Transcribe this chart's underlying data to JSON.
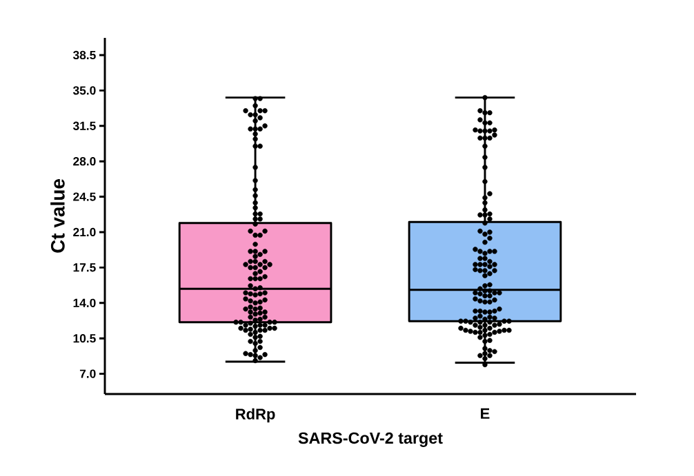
{
  "chart_data": {
    "type": "box",
    "xlabel": "SARS-CoV-2 target",
    "ylabel": "Ct value",
    "categories": [
      "RdRp",
      "E"
    ],
    "ylim": [
      5,
      40.2
    ],
    "yticks": [
      {
        "value": 7,
        "label": "7.0"
      },
      10.5,
      {
        "value": 14,
        "label": "14.0"
      },
      17.5,
      {
        "value": 21,
        "label": "21.0"
      },
      24.5,
      {
        "value": 28,
        "label": "28.0"
      },
      31.5,
      {
        "value": 35,
        "label": "35.0"
      },
      38.5
    ],
    "series": [
      {
        "colors": [
          "#f89ac8",
          "#92c0f5"
        ],
        "boxes": [
          {
            "low": 8.2,
            "q1": 12.1,
            "median": 15.4,
            "q3": 21.9,
            "high": 34.3
          },
          {
            "low": 8.1,
            "q1": 12.2,
            "median": 15.3,
            "q3": 22.0,
            "high": 34.3
          }
        ]
      },
      {
        "type": "scatter",
        "color": "#000000",
        "marker": "circle",
        "x": [
          "RdRp",
          "RdRp",
          "RdRp",
          "RdRp",
          "RdRp",
          "RdRp",
          "RdRp",
          "RdRp",
          "RdRp",
          "RdRp",
          "RdRp",
          "RdRp",
          "RdRp",
          "RdRp",
          "RdRp",
          "RdRp",
          "RdRp",
          "RdRp",
          "RdRp",
          "RdRp",
          "RdRp",
          "RdRp",
          "RdRp",
          "RdRp",
          "RdRp",
          "RdRp",
          "RdRp",
          "RdRp",
          "RdRp",
          "RdRp",
          "RdRp",
          "RdRp",
          "RdRp",
          "RdRp",
          "RdRp",
          "RdRp",
          "RdRp",
          "RdRp",
          "RdRp",
          "RdRp",
          "RdRp",
          "RdRp",
          "RdRp",
          "RdRp",
          "RdRp",
          "RdRp",
          "RdRp",
          "RdRp",
          "RdRp",
          "RdRp",
          "RdRp",
          "RdRp",
          "RdRp",
          "RdRp",
          "RdRp",
          "RdRp",
          "RdRp",
          "RdRp",
          "RdRp",
          "RdRp",
          "RdRp",
          "RdRp",
          "RdRp",
          "RdRp",
          "RdRp",
          "RdRp",
          "RdRp",
          "RdRp",
          "RdRp",
          "RdRp",
          "RdRp",
          "RdRp",
          "RdRp",
          "RdRp",
          "RdRp",
          "RdRp",
          "RdRp",
          "RdRp",
          "RdRp",
          "RdRp",
          "RdRp",
          "RdRp",
          "RdRp",
          "RdRp",
          "RdRp",
          "RdRp",
          "RdRp",
          "RdRp",
          "RdRp",
          "RdRp",
          "RdRp",
          "RdRp",
          "RdRp",
          "RdRp",
          "RdRp",
          "RdRp",
          "RdRp",
          "RdRp",
          "RdRp",
          "RdRp",
          "RdRp",
          "RdRp",
          "RdRp",
          "RdRp",
          "RdRp",
          "RdRp",
          "RdRp",
          "RdRp",
          "RdRp",
          "RdRp"
        ],
        "values": [
          34.2,
          34.2,
          33.5,
          33.0,
          33.0,
          33.0,
          32.6,
          32.6,
          32.3,
          32.0,
          31.5,
          31.2,
          31.2,
          31.2,
          30.7,
          30.2,
          29.5,
          29.5,
          27.4,
          26.1,
          25.2,
          24.6,
          23.9,
          23.4,
          22.8,
          22.8,
          22.3,
          22.3,
          21.8,
          21.1,
          21.1,
          20.7,
          20.7,
          19.8,
          19.1,
          19.1,
          19.1,
          18.8,
          18.6,
          18.1,
          18.1,
          18.1,
          17.8,
          17.8,
          17.8,
          17.5,
          17.5,
          17.5,
          17.1,
          16.9,
          16.6,
          16.4,
          16.4,
          16.4,
          15.7,
          15.5,
          15.4,
          15.0,
          15.0,
          14.9,
          14.9,
          14.8,
          14.4,
          14.3,
          14.2,
          14.1,
          14.0,
          13.6,
          13.5,
          13.4,
          13.4,
          13.1,
          13.1,
          13.0,
          12.9,
          12.6,
          12.6,
          12.4,
          12.3,
          12.1,
          12.1,
          12.1,
          12.1,
          12.0,
          11.8,
          11.8,
          11.8,
          11.7,
          11.5,
          11.5,
          11.5,
          11.4,
          11.3,
          11.3,
          11.3,
          11.1,
          10.9,
          10.7,
          10.6,
          10.2,
          10.2,
          10.0,
          9.6,
          9.3,
          9.0,
          8.9,
          8.9,
          8.8,
          8.6,
          8.3
        ]
      },
      {
        "type": "scatter",
        "color": "#000000",
        "marker": "circle",
        "x": [
          "E",
          "E",
          "E",
          "E",
          "E",
          "E",
          "E",
          "E",
          "E",
          "E",
          "E",
          "E",
          "E",
          "E",
          "E",
          "E",
          "E",
          "E",
          "E",
          "E",
          "E",
          "E",
          "E",
          "E",
          "E",
          "E",
          "E",
          "E",
          "E",
          "E",
          "E",
          "E",
          "E",
          "E",
          "E",
          "E",
          "E",
          "E",
          "E",
          "E",
          "E",
          "E",
          "E",
          "E",
          "E",
          "E",
          "E",
          "E",
          "E",
          "E",
          "E",
          "E",
          "E",
          "E",
          "E",
          "E",
          "E",
          "E",
          "E",
          "E",
          "E",
          "E",
          "E",
          "E",
          "E",
          "E",
          "E",
          "E",
          "E",
          "E",
          "E",
          "E",
          "E",
          "E",
          "E",
          "E",
          "E",
          "E",
          "E",
          "E",
          "E",
          "E",
          "E",
          "E",
          "E",
          "E",
          "E",
          "E",
          "E",
          "E",
          "E",
          "E",
          "E",
          "E",
          "E",
          "E",
          "E",
          "E",
          "E",
          "E",
          "E",
          "E",
          "E",
          "E",
          "E",
          "E",
          "E",
          "E",
          "E",
          "E",
          "E",
          "E",
          "E",
          "E",
          "E",
          "E"
        ],
        "values": [
          34.3,
          33.0,
          32.8,
          32.8,
          32.1,
          31.8,
          31.8,
          31.1,
          31.1,
          31.0,
          31.0,
          31.0,
          30.6,
          30.3,
          30.3,
          30.3,
          29.5,
          28.4,
          27.4,
          26.0,
          24.8,
          24.4,
          23.9,
          23.2,
          22.8,
          22.7,
          22.7,
          22.3,
          21.9,
          21.1,
          21.0,
          20.8,
          20.4,
          20.0,
          19.3,
          19.1,
          19.1,
          19.1,
          18.9,
          18.4,
          18.4,
          18.1,
          17.8,
          17.8,
          17.8,
          17.8,
          17.6,
          17.3,
          17.2,
          17.2,
          17.2,
          16.9,
          16.7,
          15.8,
          15.7,
          15.4,
          15.2,
          15.2,
          15.0,
          15.0,
          15.0,
          14.9,
          14.7,
          14.7,
          14.4,
          14.3,
          14.2,
          14.1,
          14.1,
          13.4,
          13.2,
          13.2,
          13.2,
          13.1,
          13.1,
          12.7,
          12.6,
          12.5,
          12.5,
          12.4,
          12.2,
          12.2,
          12.2,
          12.2,
          12.1,
          12.1,
          12.1,
          11.9,
          11.8,
          11.8,
          11.8,
          11.6,
          11.5,
          11.5,
          11.3,
          11.3,
          11.3,
          11.3,
          11.2,
          11.2,
          11.1,
          11.1,
          11.1,
          10.9,
          10.8,
          10.6,
          10.3,
          10.2,
          9.5,
          9.3,
          9.2,
          9.0,
          8.8,
          8.8,
          8.5,
          7.9
        ]
      }
    ]
  }
}
